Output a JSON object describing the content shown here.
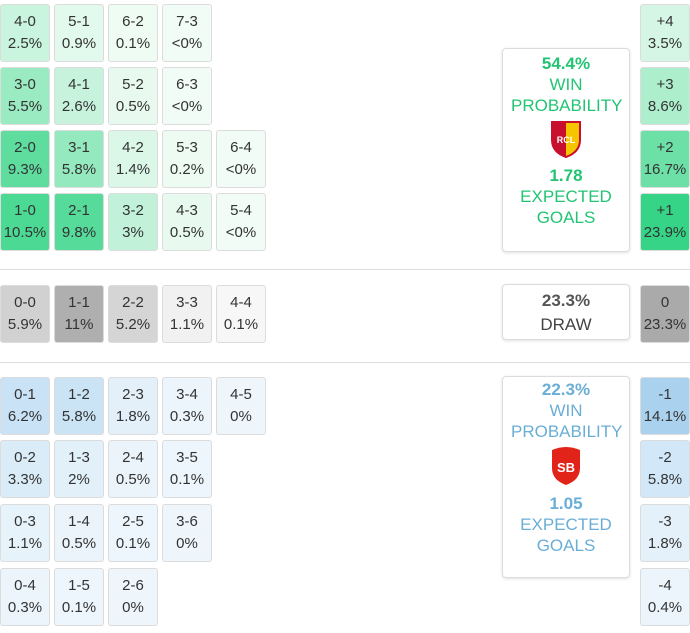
{
  "home": {
    "rows": [
      [
        {
          "score": "4-0",
          "prob": "2.5%"
        },
        {
          "score": "5-1",
          "prob": "0.9%"
        },
        {
          "score": "6-2",
          "prob": "0.1%"
        },
        {
          "score": "7-3",
          "prob": "<0%"
        }
      ],
      [
        {
          "score": "3-0",
          "prob": "5.5%"
        },
        {
          "score": "4-1",
          "prob": "2.6%"
        },
        {
          "score": "5-2",
          "prob": "0.5%"
        },
        {
          "score": "6-3",
          "prob": "<0%"
        }
      ],
      [
        {
          "score": "2-0",
          "prob": "9.3%"
        },
        {
          "score": "3-1",
          "prob": "5.8%"
        },
        {
          "score": "4-2",
          "prob": "1.4%"
        },
        {
          "score": "5-3",
          "prob": "0.2%"
        },
        {
          "score": "6-4",
          "prob": "<0%"
        }
      ],
      [
        {
          "score": "1-0",
          "prob": "10.5%"
        },
        {
          "score": "2-1",
          "prob": "9.8%"
        },
        {
          "score": "3-2",
          "prob": "3%"
        },
        {
          "score": "4-3",
          "prob": "0.5%"
        },
        {
          "score": "5-4",
          "prob": "<0%"
        }
      ]
    ],
    "card": {
      "prob": "54.4%",
      "label": "WIN PROBABILITY",
      "xg": "1.78",
      "xg_label": "EXPECTED GOALS"
    },
    "margins": [
      {
        "diff": "+4",
        "prob": "3.5%"
      },
      {
        "diff": "+3",
        "prob": "8.6%"
      },
      {
        "diff": "+2",
        "prob": "16.7%"
      },
      {
        "diff": "+1",
        "prob": "23.9%"
      }
    ]
  },
  "draw": {
    "rows": [
      [
        {
          "score": "0-0",
          "prob": "5.9%"
        },
        {
          "score": "1-1",
          "prob": "11%"
        },
        {
          "score": "2-2",
          "prob": "5.2%"
        },
        {
          "score": "3-3",
          "prob": "1.1%"
        },
        {
          "score": "4-4",
          "prob": "0.1%"
        }
      ]
    ],
    "card": {
      "prob": "23.3%",
      "label": "DRAW"
    },
    "margins": [
      {
        "diff": "0",
        "prob": "23.3%"
      }
    ]
  },
  "away": {
    "rows": [
      [
        {
          "score": "0-1",
          "prob": "6.2%"
        },
        {
          "score": "1-2",
          "prob": "5.8%"
        },
        {
          "score": "2-3",
          "prob": "1.8%"
        },
        {
          "score": "3-4",
          "prob": "0.3%"
        },
        {
          "score": "4-5",
          "prob": "0%"
        }
      ],
      [
        {
          "score": "0-2",
          "prob": "3.3%"
        },
        {
          "score": "1-3",
          "prob": "2%"
        },
        {
          "score": "2-4",
          "prob": "0.5%"
        },
        {
          "score": "3-5",
          "prob": "0.1%"
        }
      ],
      [
        {
          "score": "0-3",
          "prob": "1.1%"
        },
        {
          "score": "1-4",
          "prob": "0.5%"
        },
        {
          "score": "2-5",
          "prob": "0.1%"
        },
        {
          "score": "3-6",
          "prob": "0%"
        }
      ],
      [
        {
          "score": "0-4",
          "prob": "0.3%"
        },
        {
          "score": "1-5",
          "prob": "0.1%"
        },
        {
          "score": "2-6",
          "prob": "0%"
        }
      ]
    ],
    "card": {
      "prob": "22.3%",
      "label": "WIN PROBABILITY",
      "xg": "1.05",
      "xg_label": "EXPECTED GOALS"
    },
    "margins": [
      {
        "diff": "-1",
        "prob": "14.1%"
      },
      {
        "diff": "-2",
        "prob": "5.8%"
      },
      {
        "diff": "-3",
        "prob": "1.8%"
      },
      {
        "diff": "-4",
        "prob": "0.4%"
      }
    ]
  }
}
